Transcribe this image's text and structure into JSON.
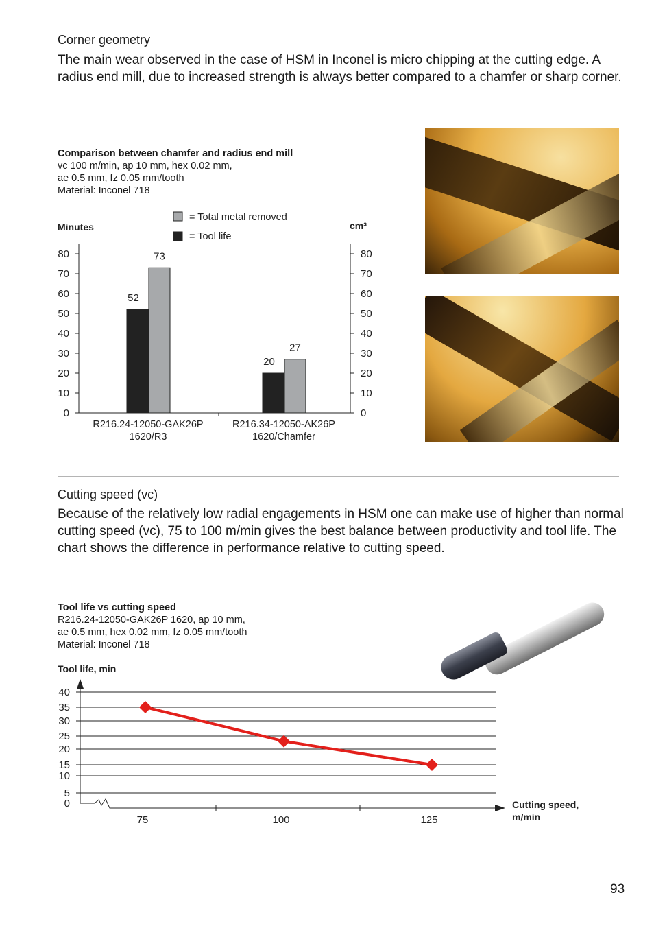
{
  "section1": {
    "heading": "Corner geometry",
    "paragraph": "The main wear observed in the case of HSM in Inconel is micro chipping at the cutting edge. A radius end mill, due to increased strength is always better compared to a chamfer or sharp corner."
  },
  "chart1_caption": {
    "title": "Comparison between chamfer and radius end mill",
    "line1": "vc 100 m/min, ap 10 mm, hex 0.02 mm,",
    "line2": "ae 0.5 mm, fz 0.05 mm/tooth",
    "line3": "Material: Inconel 718"
  },
  "section2": {
    "heading": "Cutting speed (vc)",
    "paragraph": "Because of the relatively low radial engagements in HSM one can make use of higher than normal cutting speed (vc), 75 to 100 m/min gives the best balance between productivity and tool life. The chart shows the difference in performance relative to cutting speed."
  },
  "chart2_caption": {
    "title": "Tool life vs cutting speed",
    "line1": "R216.24-12050-GAK26P 1620, ap 10 mm,",
    "line2": "ae 0.5 mm, hex 0.02 mm, fz 0.05 mm/tooth",
    "line3": "Material: Inconel 718"
  },
  "page_number": "93",
  "chart_data": [
    {
      "type": "bar",
      "ylabel_left": "Minutes",
      "ylabel_right": "cm³",
      "ylim": [
        0,
        80
      ],
      "yticks": [
        "0",
        "10",
        "20",
        "30",
        "40",
        "50",
        "60",
        "70",
        "80"
      ],
      "categories": [
        "R216.24-12050-GAK26P\n1620/R3",
        "R216.34-12050-AK26P\n1620/Chamfer"
      ],
      "category_lines": [
        [
          "R216.24-12050-GAK26P",
          "1620/R3"
        ],
        [
          "R216.34-12050-AK26P",
          "1620/Chamfer"
        ]
      ],
      "legend": [
        "= Total metal removed",
        "= Tool life"
      ],
      "legend_placement": "top",
      "series": [
        {
          "name": "Tool life",
          "values": [
            52,
            20
          ],
          "color": "#222222"
        },
        {
          "name": "Total metal removed",
          "values": [
            73,
            27
          ],
          "color": "#a7a9ab"
        }
      ]
    },
    {
      "type": "line",
      "ylabel": "Tool life, min",
      "xlabel_lines": [
        "Cutting speed,",
        "m/min"
      ],
      "ylim": [
        0,
        40
      ],
      "yticks": [
        "0",
        "5",
        "10",
        "15",
        "20",
        "25",
        "30",
        "35",
        "40"
      ],
      "x": [
        "75",
        "100",
        "125"
      ],
      "values": [
        35,
        23,
        15
      ],
      "color": "#e3201b",
      "grid": true
    }
  ]
}
